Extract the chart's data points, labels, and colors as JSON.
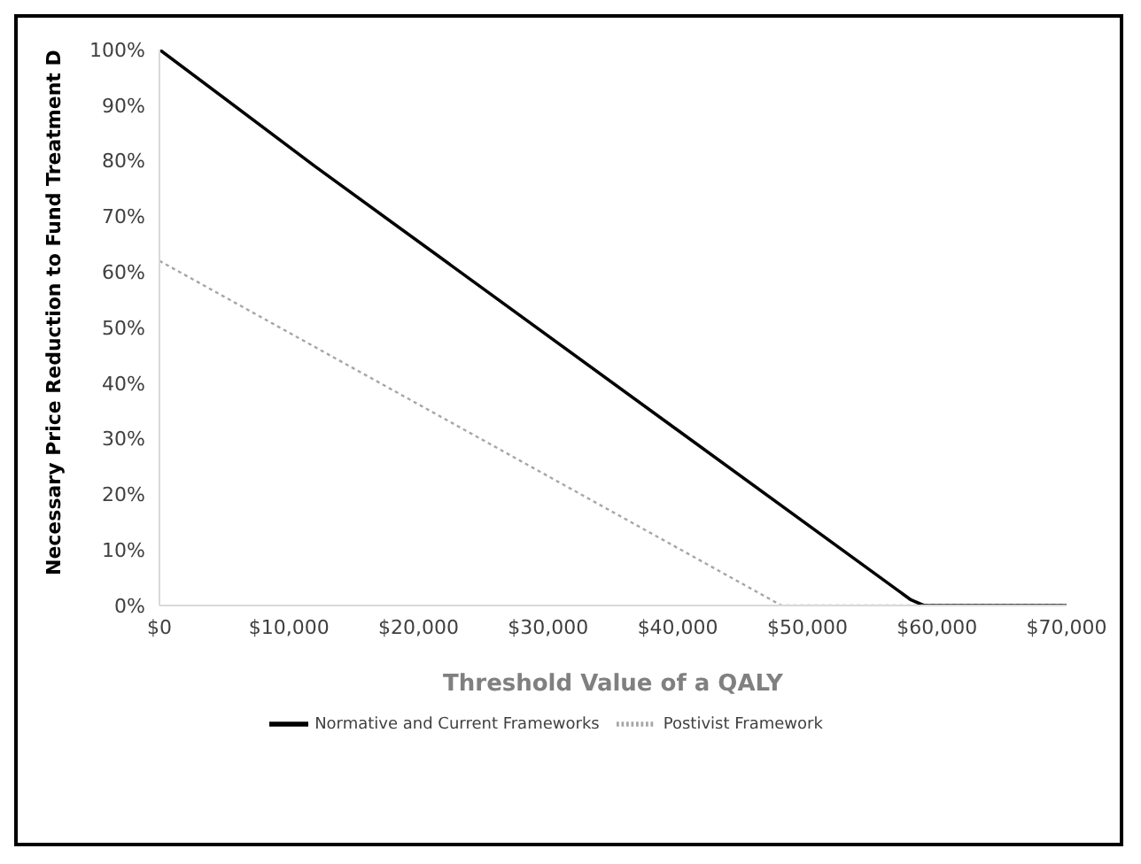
{
  "chart_data": {
    "type": "line",
    "xlabel": "Threshold Value of a QALY",
    "ylabel": "Necessary Price Reduction to Fund Treatment D",
    "series": [
      {
        "name": "Normative and Current Frameworks",
        "color": "#000000",
        "line_style": "solid",
        "x": [
          0,
          12000,
          58000,
          59000,
          70000
        ],
        "values": [
          100,
          79,
          1,
          0,
          0
        ]
      },
      {
        "name": "Postivist Framework",
        "color": "#a6a6a6",
        "line_style": "dotted",
        "x": [
          0,
          48000,
          70000
        ],
        "values": [
          62,
          0,
          0
        ]
      }
    ],
    "xlim": [
      0,
      70000
    ],
    "xticks": [
      {
        "value": 0,
        "label": "$0"
      },
      {
        "value": 10000,
        "label": "$10,000"
      },
      {
        "value": 20000,
        "label": "$20,000"
      },
      {
        "value": 30000,
        "label": "$30,000"
      },
      {
        "value": 40000,
        "label": "$40,000"
      },
      {
        "value": 50000,
        "label": "$50,000"
      },
      {
        "value": 60000,
        "label": "$60,000"
      },
      {
        "value": 70000,
        "label": "$70,000"
      }
    ],
    "ylim": [
      0,
      100
    ],
    "yticks": [
      {
        "value": 0,
        "label": "0%"
      },
      {
        "value": 10,
        "label": "10%"
      },
      {
        "value": 20,
        "label": "20%"
      },
      {
        "value": 30,
        "label": "30%"
      },
      {
        "value": 40,
        "label": "40%"
      },
      {
        "value": 50,
        "label": "50%"
      },
      {
        "value": 60,
        "label": "60%"
      },
      {
        "value": 70,
        "label": "70%"
      },
      {
        "value": 80,
        "label": "80%"
      },
      {
        "value": 90,
        "label": "90%"
      },
      {
        "value": 100,
        "label": "100%"
      }
    ],
    "grid": false,
    "legend": "bottom",
    "marker": "none"
  }
}
